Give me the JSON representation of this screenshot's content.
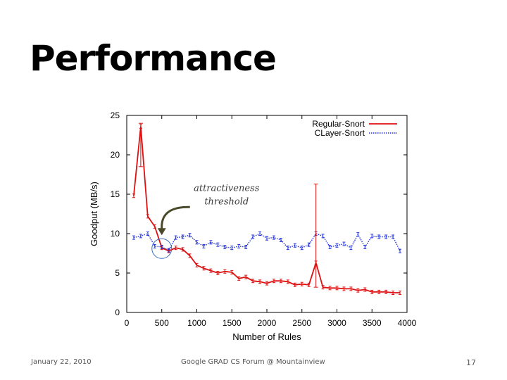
{
  "slide": {
    "title": "Performance",
    "footer_date": "January 22, 2010",
    "footer_event": "Google GRAD CS Forum @ Mountainview",
    "page_number": "17"
  },
  "annotation": {
    "line1": "attractiveness",
    "line2": "threshold"
  },
  "chart_data": {
    "type": "line",
    "title": "",
    "xlabel": "Number of Rules",
    "ylabel": "Goodput (MB/s)",
    "xlim": [
      0,
      4000
    ],
    "ylim": [
      0,
      25
    ],
    "xticks": [
      0,
      500,
      1000,
      1500,
      2000,
      2500,
      3000,
      3500,
      4000
    ],
    "yticks": [
      0,
      5,
      10,
      15,
      20,
      25
    ],
    "grid": false,
    "legend_position": "top-right",
    "colors": {
      "regular": "#dd1111",
      "clayer": "#2233dd",
      "annotation": "#4a4a2a",
      "circle": "#3a6fc0"
    },
    "series": [
      {
        "name": "Regular-Snort",
        "style": "solid",
        "x": [
          100,
          200,
          300,
          400,
          500,
          600,
          700,
          800,
          900,
          1000,
          1100,
          1200,
          1300,
          1400,
          1500,
          1600,
          1700,
          1800,
          1900,
          2000,
          2100,
          2200,
          2300,
          2400,
          2500,
          2600,
          2700,
          2800,
          2900,
          3000,
          3100,
          3200,
          3300,
          3400,
          3500,
          3600,
          3700,
          3800,
          3900
        ],
        "y": [
          14.8,
          23.6,
          12.2,
          10.9,
          8.2,
          7.8,
          8.2,
          8.0,
          7.2,
          6.0,
          5.6,
          5.3,
          5.0,
          5.2,
          5.1,
          4.3,
          4.5,
          4.0,
          3.9,
          3.7,
          4.0,
          4.0,
          3.9,
          3.5,
          3.6,
          3.5,
          6.3,
          3.2,
          3.1,
          3.1,
          3.0,
          3.0,
          2.8,
          2.9,
          2.6,
          2.6,
          2.6,
          2.5,
          2.5
        ]
      },
      {
        "name": "CLayer-Snort",
        "style": "dotted",
        "x": [
          100,
          200,
          300,
          400,
          500,
          600,
          700,
          800,
          900,
          1000,
          1100,
          1200,
          1300,
          1400,
          1500,
          1600,
          1700,
          1800,
          1900,
          2000,
          2100,
          2200,
          2300,
          2400,
          2500,
          2600,
          2700,
          2800,
          2900,
          3000,
          3100,
          3200,
          3300,
          3400,
          3500,
          3600,
          3700,
          3800,
          3900
        ],
        "y": [
          9.5,
          9.7,
          10.0,
          8.4,
          8.3,
          7.9,
          9.5,
          9.6,
          9.8,
          8.9,
          8.4,
          8.9,
          8.6,
          8.3,
          8.2,
          8.4,
          8.3,
          9.6,
          10.0,
          9.4,
          9.5,
          9.2,
          8.2,
          8.5,
          8.2,
          8.6,
          10.0,
          9.7,
          8.3,
          8.5,
          8.7,
          8.2,
          9.9,
          8.3,
          9.7,
          9.6,
          9.6,
          9.6,
          7.8
        ]
      }
    ],
    "annotations": [
      {
        "text": "attractiveness threshold",
        "points_to_x": 500,
        "points_to_y": 8.1
      }
    ]
  }
}
